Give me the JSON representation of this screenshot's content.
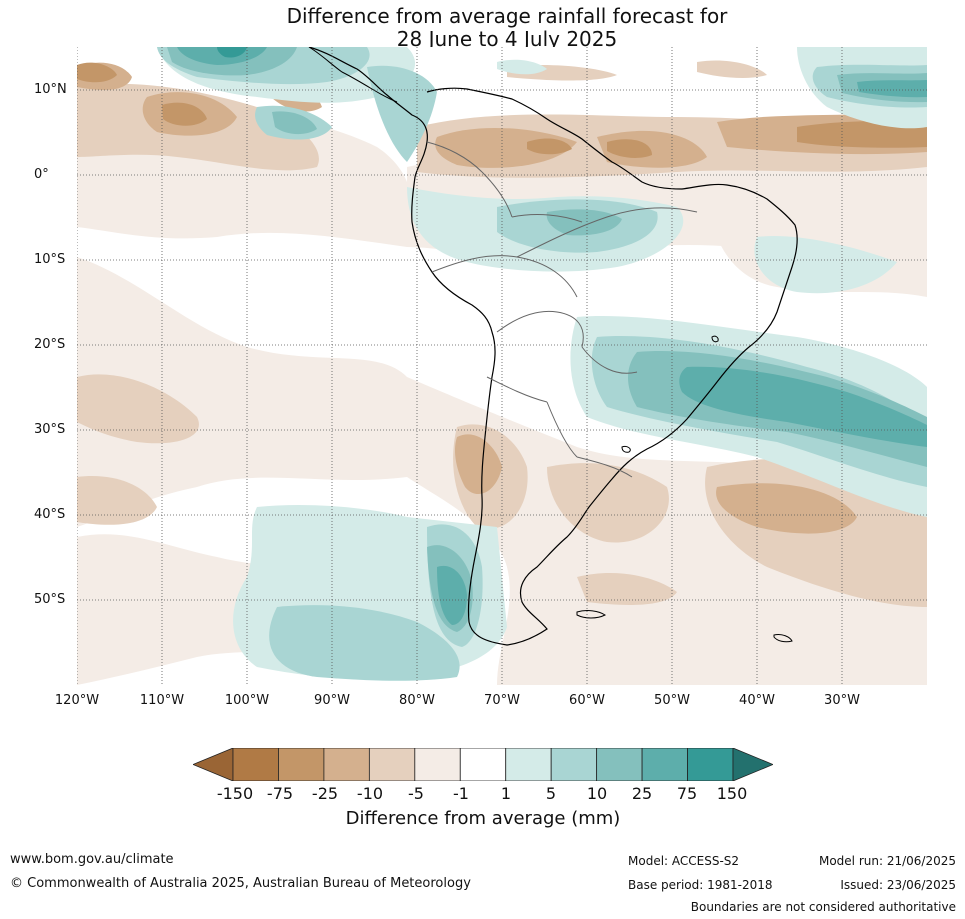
{
  "title": {
    "line1": "Difference from average rainfall forecast for",
    "line2": "28 June to 4 July 2025"
  },
  "map": {
    "region": "South America",
    "lat_labels": [
      "10°N",
      "0°",
      "10°S",
      "20°S",
      "30°S",
      "40°S",
      "50°S"
    ],
    "lon_labels": [
      "120°W",
      "110°W",
      "100°W",
      "90°W",
      "80°W",
      "70°W",
      "60°W",
      "50°W",
      "40°W",
      "30°W"
    ],
    "gridlines": "dotted"
  },
  "legend": {
    "title": "Difference from average (mm)",
    "ticks": [
      "-150",
      "-75",
      "-25",
      "-10",
      "-5",
      "-1",
      "1",
      "5",
      "10",
      "25",
      "75",
      "150"
    ],
    "colors": [
      "#9a6535",
      "#b07a45",
      "#c39668",
      "#d4b08e",
      "#e5d0be",
      "#f4ece6",
      "#ffffff",
      "#d4ebe8",
      "#a9d5d3",
      "#84c0bd",
      "#5daeab",
      "#349a96",
      "#23716e"
    ]
  },
  "footer": {
    "website": "www.bom.gov.au/climate",
    "copyright": "© Commonwealth of Australia 2025, Australian Bureau of Meteorology",
    "model": "Model: ACCESS-S2",
    "base_period": "Base period: 1981-2018",
    "model_run": "Model run: 21/06/2025",
    "issued": "Issued: 23/06/2025",
    "disclaimer": "Boundaries are not considered authoritative"
  }
}
